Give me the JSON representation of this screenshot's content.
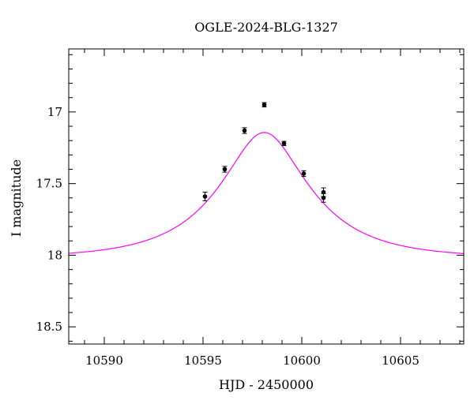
{
  "chart_data": {
    "type": "scatter",
    "title": "OGLE-2024-BLG-1327",
    "xlabel": "HJD - 2450000",
    "ylabel": "I magnitude",
    "xlim": [
      10588.2,
      10608.2
    ],
    "ylim": [
      18.62,
      16.56
    ],
    "y_inverted": true,
    "x_ticks": [
      10590,
      10595,
      10600,
      10605
    ],
    "x_tick_labels": [
      "10590",
      "10595",
      "10600",
      "10605"
    ],
    "y_ticks": [
      17,
      17.5,
      18,
      18.5
    ],
    "y_tick_labels": [
      "17",
      "17.5",
      "18",
      "18.5"
    ],
    "x_minor_step": 1,
    "y_minor_step": 0.1,
    "grid": false,
    "model_color": "#ff00ff",
    "model": {
      "t0": 10598.1,
      "tE": 4.3,
      "u0": 0.4275,
      "baseline_mag": 18.02,
      "fs": 0.83,
      "x_range": [
        10588.2,
        10608.2
      ]
    },
    "series": [
      {
        "x": [
          10595.1,
          10596.1,
          10597.1,
          10598.1,
          10599.1,
          10600.1,
          10601.1,
          10601.1
        ],
        "y": [
          17.59,
          17.4,
          17.13,
          16.95,
          17.22,
          17.43,
          17.56,
          17.6
        ],
        "yerr": [
          0.03,
          0.02,
          0.02,
          0.015,
          0.015,
          0.02,
          0.03,
          0.03
        ]
      }
    ]
  }
}
